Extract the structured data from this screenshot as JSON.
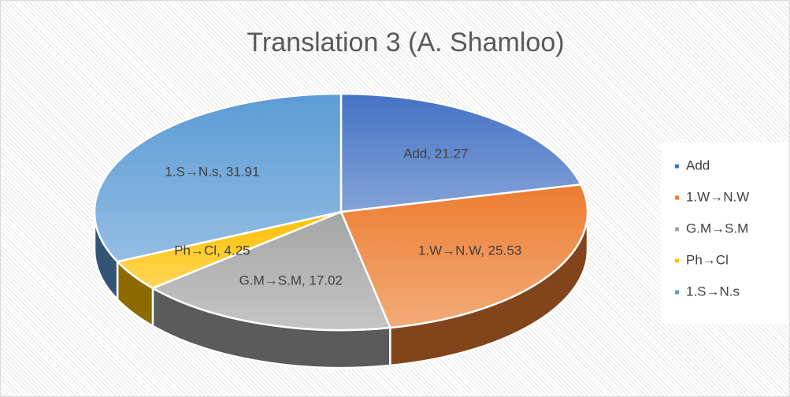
{
  "chart_data": {
    "type": "pie",
    "three_d": true,
    "title": "Translation 3 (A. Shamloo)",
    "categories": [
      "Add",
      "1.W→N.W",
      "G.M→S.M",
      "Ph→Cl",
      "1.S→N.s"
    ],
    "values": [
      21.27,
      25.53,
      17.02,
      4.25,
      31.91
    ],
    "value_labels": [
      "Add, 21.27",
      "1.W→N.W, 25.53",
      "G.M→S.M, 17.02",
      "Ph→Cl, 4.25",
      "1.S→N.s, 31.91"
    ],
    "colors": [
      "#4472c4",
      "#ed7d31",
      "#a5a5a5",
      "#ffc000",
      "#5b9bd5"
    ],
    "legend": "right"
  }
}
